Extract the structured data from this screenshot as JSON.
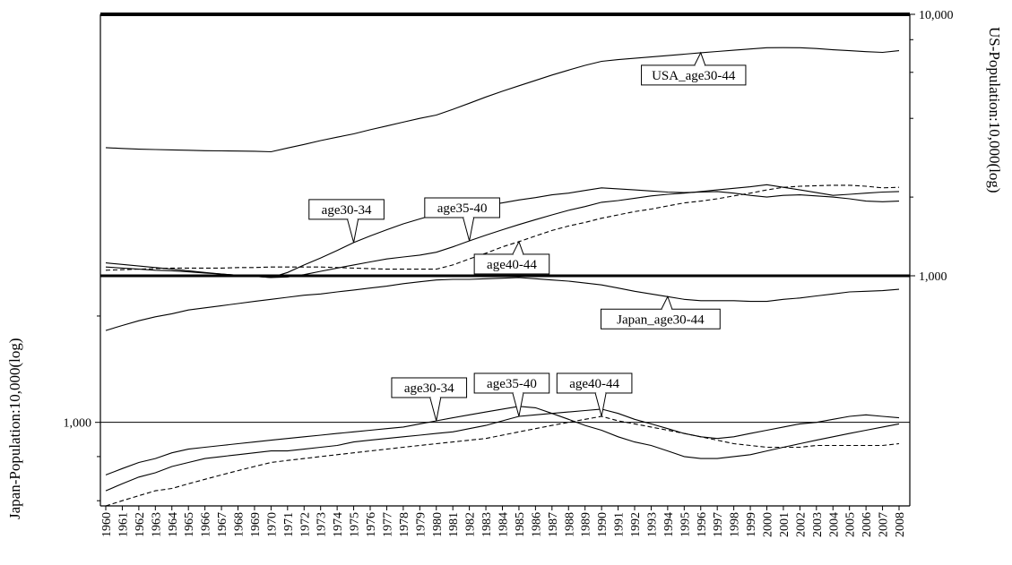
{
  "chart_data": {
    "type": "line",
    "x": [
      1960,
      1961,
      1962,
      1963,
      1964,
      1965,
      1966,
      1967,
      1968,
      1969,
      1970,
      1971,
      1972,
      1973,
      1974,
      1975,
      1976,
      1977,
      1978,
      1979,
      1980,
      1981,
      1982,
      1983,
      1984,
      1985,
      1986,
      1987,
      1988,
      1989,
      1990,
      1991,
      1992,
      1993,
      1994,
      1995,
      1996,
      1997,
      1998,
      1999,
      2000,
      2001,
      2002,
      2003,
      2004,
      2005,
      2006,
      2007,
      2008
    ],
    "x_tick_labels": [
      "1960",
      "1961",
      "1962",
      "1963",
      "1964",
      "1965",
      "1966",
      "1967",
      "1968",
      "1969",
      "1970",
      "1971",
      "1972",
      "1973",
      "1974",
      "1975",
      "1976",
      "1977",
      "1978",
      "1979",
      "1980",
      "1981",
      "1982",
      "1983",
      "1984",
      "1985",
      "1986",
      "1987",
      "1988",
      "1989",
      "1990",
      "1991",
      "1992",
      "1993",
      "1994",
      "1995",
      "1996",
      "1997",
      "1998",
      "1999",
      "2000",
      "2001",
      "2002",
      "2003",
      "2004",
      "2005",
      "2006",
      "2007",
      "2008"
    ],
    "panels": [
      {
        "id": "usa",
        "y_axis_side": "right",
        "ylabel": "US-Population:10,000(log)",
        "yscale": "log",
        "ylim": [
          1000,
          10000
        ],
        "y_tick_labels": [
          "10,000",
          "1,000"
        ],
        "series": [
          {
            "name": "USA_age30-44",
            "style": "solid",
            "label_year": 1996,
            "label_pos": "below",
            "values": [
              3090,
              3070,
              3050,
              3040,
              3030,
              3020,
              3010,
              3005,
              3000,
              2995,
              2980,
              3080,
              3180,
              3290,
              3390,
              3490,
              3620,
              3740,
              3870,
              4000,
              4120,
              4330,
              4570,
              4830,
              5080,
              5330,
              5590,
              5860,
              6120,
              6380,
              6610,
              6710,
              6790,
              6870,
              6950,
              7040,
              7130,
              7210,
              7290,
              7370,
              7450,
              7460,
              7450,
              7400,
              7320,
              7260,
              7200,
              7150,
              7260
            ]
          },
          {
            "name": "age30-34",
            "style": "solid",
            "label_year": 1975,
            "label_pos": "above",
            "values": [
              1120,
              1105,
              1090,
              1075,
              1060,
              1045,
              1030,
              1015,
              1005,
              995,
              985,
              1030,
              1100,
              1170,
              1250,
              1340,
              1420,
              1500,
              1580,
              1650,
              1720,
              1760,
              1810,
              1860,
              1900,
              1950,
              1990,
              2040,
              2070,
              2120,
              2170,
              2150,
              2130,
              2110,
              2090,
              2080,
              2090,
              2100,
              2070,
              2030,
              2000,
              2030,
              2040,
              2020,
              2000,
              1970,
              1930,
              1920,
              1930
            ]
          },
          {
            "name": "age35-40",
            "style": "solid",
            "label_year": 1982,
            "label_pos": "above",
            "values": [
              1080,
              1070,
              1060,
              1050,
              1045,
              1035,
              1025,
              1015,
              1005,
              995,
              985,
              990,
              1010,
              1040,
              1070,
              1100,
              1130,
              1160,
              1180,
              1200,
              1230,
              1290,
              1360,
              1430,
              1500,
              1570,
              1640,
              1710,
              1780,
              1840,
              1910,
              1940,
              1980,
              2020,
              2050,
              2070,
              2100,
              2130,
              2160,
              2190,
              2230,
              2180,
              2130,
              2080,
              2030,
              2050,
              2070,
              2090,
              2100
            ]
          },
          {
            "name": "age40-44",
            "style": "dashed",
            "label_year": 1985,
            "label_pos": "below",
            "values": [
              1050,
              1055,
              1060,
              1065,
              1070,
              1070,
              1070,
              1070,
              1075,
              1075,
              1080,
              1080,
              1080,
              1080,
              1075,
              1070,
              1065,
              1060,
              1060,
              1060,
              1060,
              1100,
              1160,
              1220,
              1290,
              1350,
              1420,
              1490,
              1550,
              1600,
              1660,
              1710,
              1760,
              1800,
              1850,
              1900,
              1930,
              1970,
              2020,
              2070,
              2130,
              2180,
              2200,
              2210,
              2220,
              2220,
              2200,
              2170,
              2180
            ]
          }
        ]
      },
      {
        "id": "japan",
        "y_axis_side": "left",
        "ylabel": "Japan-Population:10,000(log)",
        "yscale": "log",
        "ylim": [
          580,
          2600
        ],
        "y_tick_labels": [
          "1,000"
        ],
        "reference_line": 1000,
        "series": [
          {
            "name": "Japan_age30-44",
            "style": "solid",
            "label_year": 1994,
            "label_pos": "below",
            "values": [
              1820,
              1880,
              1940,
              1990,
              2030,
              2080,
              2110,
              2140,
              2170,
              2200,
              2230,
              2260,
              2290,
              2310,
              2340,
              2370,
              2400,
              2430,
              2470,
              2500,
              2530,
              2540,
              2540,
              2550,
              2560,
              2570,
              2550,
              2530,
              2510,
              2480,
              2450,
              2400,
              2350,
              2310,
              2270,
              2230,
              2210,
              2210,
              2210,
              2200,
              2200,
              2230,
              2250,
              2280,
              2310,
              2340,
              2350,
              2360,
              2380
            ]
          },
          {
            "name": "age30-34",
            "style": "solid",
            "label_year": 1980,
            "label_pos": "above",
            "values": [
              710,
              740,
              770,
              790,
              820,
              840,
              850,
              860,
              870,
              880,
              890,
              900,
              910,
              920,
              930,
              940,
              950,
              960,
              970,
              990,
              1010,
              1030,
              1050,
              1070,
              1090,
              1110,
              1100,
              1060,
              1020,
              980,
              950,
              910,
              880,
              860,
              830,
              800,
              790,
              790,
              800,
              810,
              830,
              850,
              870,
              890,
              910,
              930,
              950,
              970,
              990
            ]
          },
          {
            "name": "age35-40",
            "style": "solid",
            "label_year": 1985,
            "label_pos": "above",
            "values": [
              640,
              670,
              700,
              720,
              750,
              770,
              790,
              800,
              810,
              820,
              830,
              830,
              840,
              850,
              860,
              880,
              890,
              900,
              910,
              920,
              930,
              940,
              960,
              980,
              1010,
              1040,
              1050,
              1060,
              1070,
              1080,
              1090,
              1060,
              1020,
              990,
              960,
              930,
              910,
              900,
              910,
              930,
              950,
              970,
              990,
              1000,
              1020,
              1040,
              1050,
              1040,
              1030
            ]
          },
          {
            "name": "age40-44",
            "style": "dashed",
            "label_year": 1990,
            "label_pos": "above",
            "values": [
              580,
              600,
              620,
              640,
              650,
              670,
              690,
              710,
              730,
              750,
              770,
              780,
              790,
              800,
              810,
              820,
              830,
              840,
              850,
              860,
              870,
              880,
              890,
              900,
              920,
              940,
              960,
              980,
              1000,
              1020,
              1040,
              1010,
              990,
              970,
              950,
              930,
              910,
              890,
              870,
              860,
              850,
              850,
              850,
              860,
              860,
              860,
              860,
              860,
              870
            ]
          }
        ]
      }
    ]
  }
}
